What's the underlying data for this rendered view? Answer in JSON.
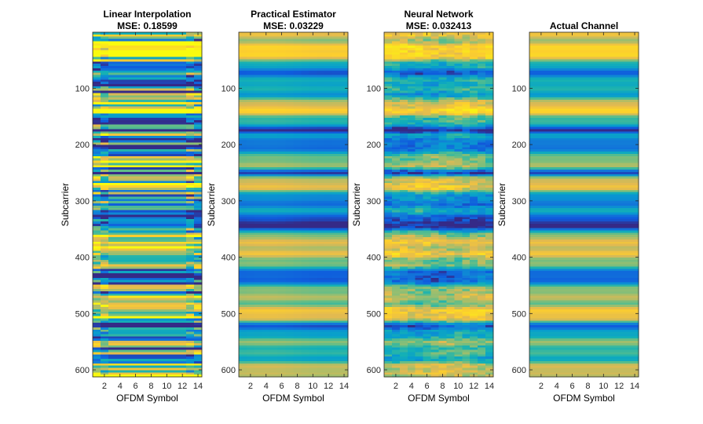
{
  "figure": {
    "panels": [
      {
        "id": "linear",
        "title": "Linear Interpolation",
        "subtitle": "MSE: 0.18599",
        "xlabel": "OFDM Symbol",
        "ylabel": "Subcarrier"
      },
      {
        "id": "practical",
        "title": "Practical Estimator",
        "subtitle": "MSE: 0.03229",
        "xlabel": "OFDM Symbol",
        "ylabel": "Subcarrier"
      },
      {
        "id": "neural",
        "title": "Neural Network",
        "subtitle": "MSE: 0.032413",
        "xlabel": "OFDM Symbol",
        "ylabel": "Subcarrier"
      },
      {
        "id": "actual",
        "title": "Actual Channel",
        "subtitle": "",
        "xlabel": "OFDM Symbol",
        "ylabel": "Subcarrier"
      }
    ]
  },
  "chart_data": [
    {
      "type": "heatmap",
      "title": "Linear Interpolation",
      "subtitle": "MSE: 0.18599",
      "xlabel": "OFDM Symbol",
      "ylabel": "Subcarrier",
      "xlim": [
        0.5,
        14.5
      ],
      "ylim": [
        612.5,
        0.5
      ],
      "x_ticks": [
        2,
        4,
        6,
        8,
        10,
        12,
        14
      ],
      "y_ticks": [
        100,
        200,
        300,
        400,
        500,
        600
      ],
      "colormap": "parula",
      "y_reversed": true,
      "grid": false
    },
    {
      "type": "heatmap",
      "title": "Practical Estimator",
      "subtitle": "MSE: 0.03229",
      "xlabel": "OFDM Symbol",
      "ylabel": "Subcarrier",
      "xlim": [
        0.5,
        14.5
      ],
      "ylim": [
        612.5,
        0.5
      ],
      "x_ticks": [
        2,
        4,
        6,
        8,
        10,
        12,
        14
      ],
      "y_ticks": [
        100,
        200,
        300,
        400,
        500,
        600
      ],
      "colormap": "parula",
      "y_reversed": true,
      "grid": false
    },
    {
      "type": "heatmap",
      "title": "Neural Network",
      "subtitle": "MSE: 0.032413",
      "xlabel": "OFDM Symbol",
      "ylabel": "Subcarrier",
      "xlim": [
        0.5,
        14.5
      ],
      "ylim": [
        612.5,
        0.5
      ],
      "x_ticks": [
        2,
        4,
        6,
        8,
        10,
        12,
        14
      ],
      "y_ticks": [
        100,
        200,
        300,
        400,
        500,
        600
      ],
      "colormap": "parula",
      "y_reversed": true,
      "grid": false
    },
    {
      "type": "heatmap",
      "title": "Actual Channel",
      "xlabel": "OFDM Symbol",
      "ylabel": "Subcarrier",
      "xlim": [
        0.5,
        14.5
      ],
      "ylim": [
        612.5,
        0.5
      ],
      "x_ticks": [
        2,
        4,
        6,
        8,
        10,
        12,
        14
      ],
      "y_ticks": [
        100,
        200,
        300,
        400,
        500,
        600
      ],
      "colormap": "parula",
      "y_reversed": true,
      "grid": false
    }
  ]
}
